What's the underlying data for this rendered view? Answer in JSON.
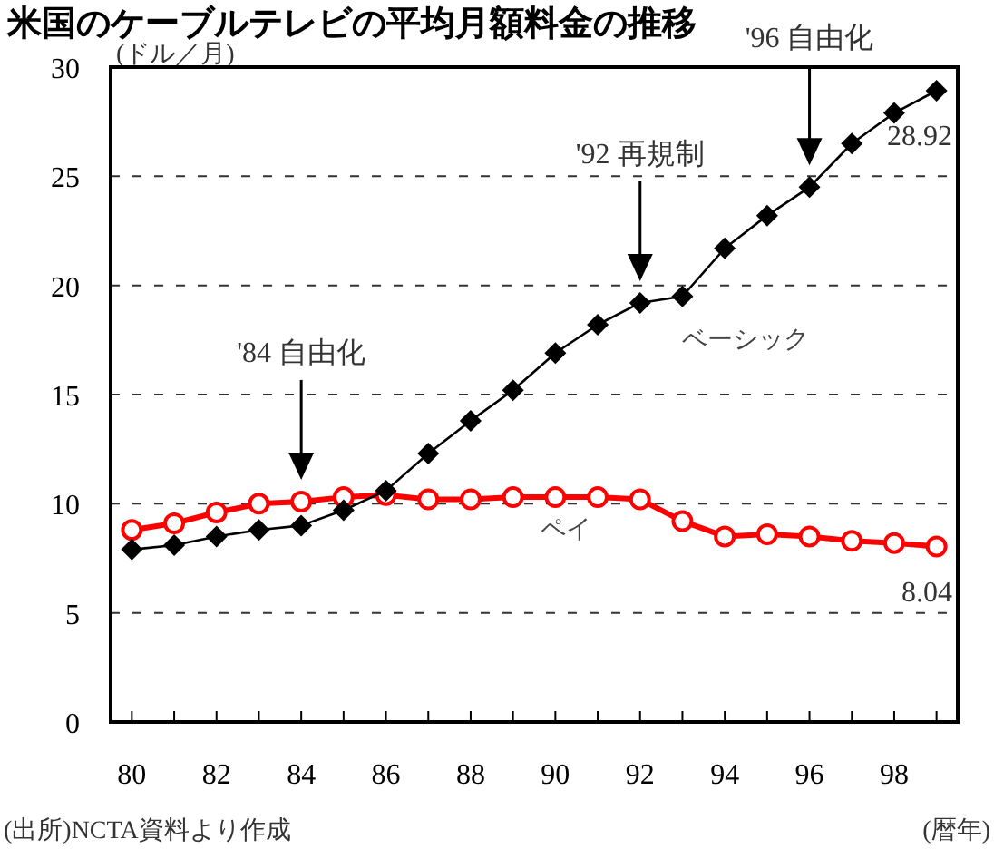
{
  "chart_data": {
    "type": "line",
    "title": "米国のケーブルテレビの平均月額料金の推移",
    "ylabel": "(ドル／月)",
    "xlabel": "(暦年)",
    "x": [
      80,
      81,
      82,
      83,
      84,
      85,
      86,
      87,
      88,
      89,
      90,
      91,
      92,
      93,
      94,
      95,
      96,
      97,
      98,
      99
    ],
    "series": [
      {
        "name": "ベーシック",
        "color": "#000000",
        "marker": "diamond",
        "values": [
          7.9,
          8.1,
          8.5,
          8.8,
          9.0,
          9.7,
          10.6,
          12.3,
          13.8,
          15.2,
          16.9,
          18.2,
          19.2,
          19.5,
          21.7,
          23.2,
          24.5,
          26.5,
          27.9,
          28.92
        ],
        "value_labels": [
          null,
          null,
          null,
          null,
          null,
          null,
          null,
          null,
          null,
          null,
          null,
          null,
          null,
          null,
          null,
          null,
          null,
          null,
          null,
          "28.92"
        ]
      },
      {
        "name": "ペイ",
        "color": "#ff0000",
        "marker": "circle",
        "values": [
          8.8,
          9.1,
          9.6,
          10.0,
          10.1,
          10.3,
          10.4,
          10.2,
          10.2,
          10.3,
          10.3,
          10.3,
          10.2,
          9.2,
          8.5,
          8.6,
          8.5,
          8.3,
          8.2,
          8.04
        ],
        "value_labels": [
          null,
          null,
          null,
          null,
          null,
          null,
          null,
          null,
          null,
          null,
          null,
          null,
          null,
          null,
          null,
          null,
          null,
          null,
          null,
          "8.04"
        ]
      }
    ],
    "xlim": [
      79.5,
      99.5
    ],
    "ylim": [
      0,
      30
    ],
    "xticks": [
      80,
      {
        "value": 81,
        "label": null
      },
      82,
      {
        "value": 83,
        "label": null
      },
      84,
      {
        "value": 85,
        "label": null
      },
      86,
      {
        "value": 87,
        "label": null
      },
      88,
      {
        "value": 89,
        "label": null
      },
      90,
      {
        "value": 91,
        "label": null
      },
      92,
      {
        "value": 93,
        "label": null
      },
      94,
      {
        "value": 95,
        "label": null
      },
      96,
      {
        "value": 97,
        "label": null
      },
      98,
      {
        "value": 99,
        "label": null
      }
    ],
    "yticks": [
      0,
      5,
      10,
      15,
      20,
      25,
      30
    ],
    "grid": "y",
    "annotations": [
      {
        "text": "'84 自由化",
        "x": 84
      },
      {
        "text": "'92 再規制",
        "x": 92
      },
      {
        "text": "'96 自由化",
        "x": 96
      },
      "(出所)NCTA資料より作成"
    ]
  }
}
